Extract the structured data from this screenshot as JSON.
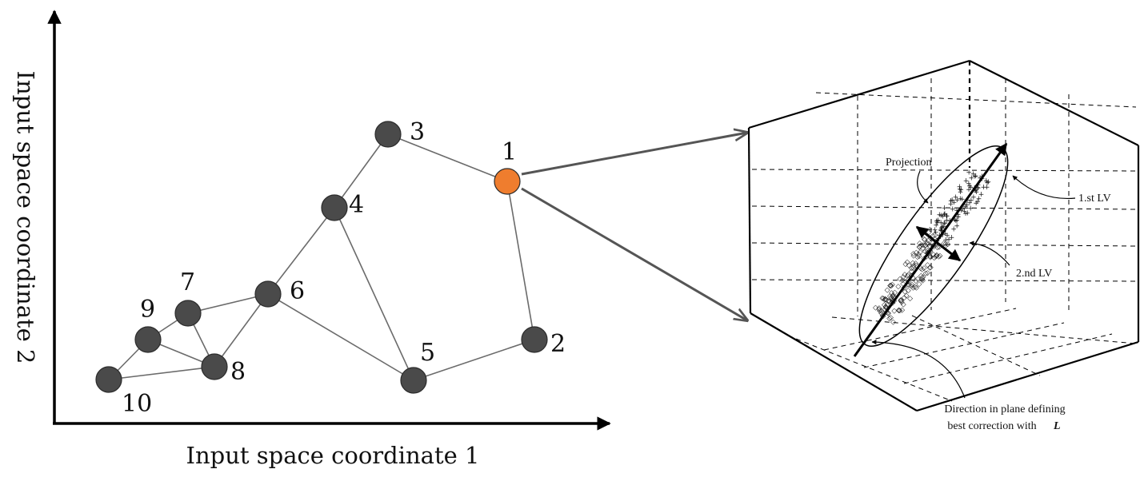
{
  "axes": {
    "x_label": "Input space coordinate 1",
    "y_label": "Input space coordinate 2"
  },
  "colors": {
    "node": "#4a4a4a",
    "highlight_node": "#ef7d2e",
    "edge": "#6b6b6b"
  },
  "nodes": [
    {
      "id": "1",
      "label": "1",
      "highlight": true
    },
    {
      "id": "2",
      "label": "2"
    },
    {
      "id": "3",
      "label": "3"
    },
    {
      "id": "4",
      "label": "4"
    },
    {
      "id": "5",
      "label": "5"
    },
    {
      "id": "6",
      "label": "6"
    },
    {
      "id": "7",
      "label": "7"
    },
    {
      "id": "8",
      "label": "8"
    },
    {
      "id": "9",
      "label": "9"
    },
    {
      "id": "10",
      "label": "10"
    }
  ],
  "edges": [
    [
      "3",
      "1"
    ],
    [
      "3",
      "4"
    ],
    [
      "1",
      "2"
    ],
    [
      "2",
      "5"
    ],
    [
      "4",
      "5"
    ],
    [
      "4",
      "6"
    ],
    [
      "6",
      "5"
    ],
    [
      "6",
      "7"
    ],
    [
      "6",
      "8"
    ],
    [
      "7",
      "9"
    ],
    [
      "7",
      "8"
    ],
    [
      "9",
      "8"
    ],
    [
      "9",
      "10"
    ],
    [
      "10",
      "8"
    ]
  ],
  "inset": {
    "annotations": {
      "projection": "Projection",
      "first_lv": "1.st LV",
      "second_lv": "2.nd LV",
      "direction_line1": "Direction in plane defining",
      "direction_line2": "best correction with",
      "direction_symbol": "L"
    }
  }
}
